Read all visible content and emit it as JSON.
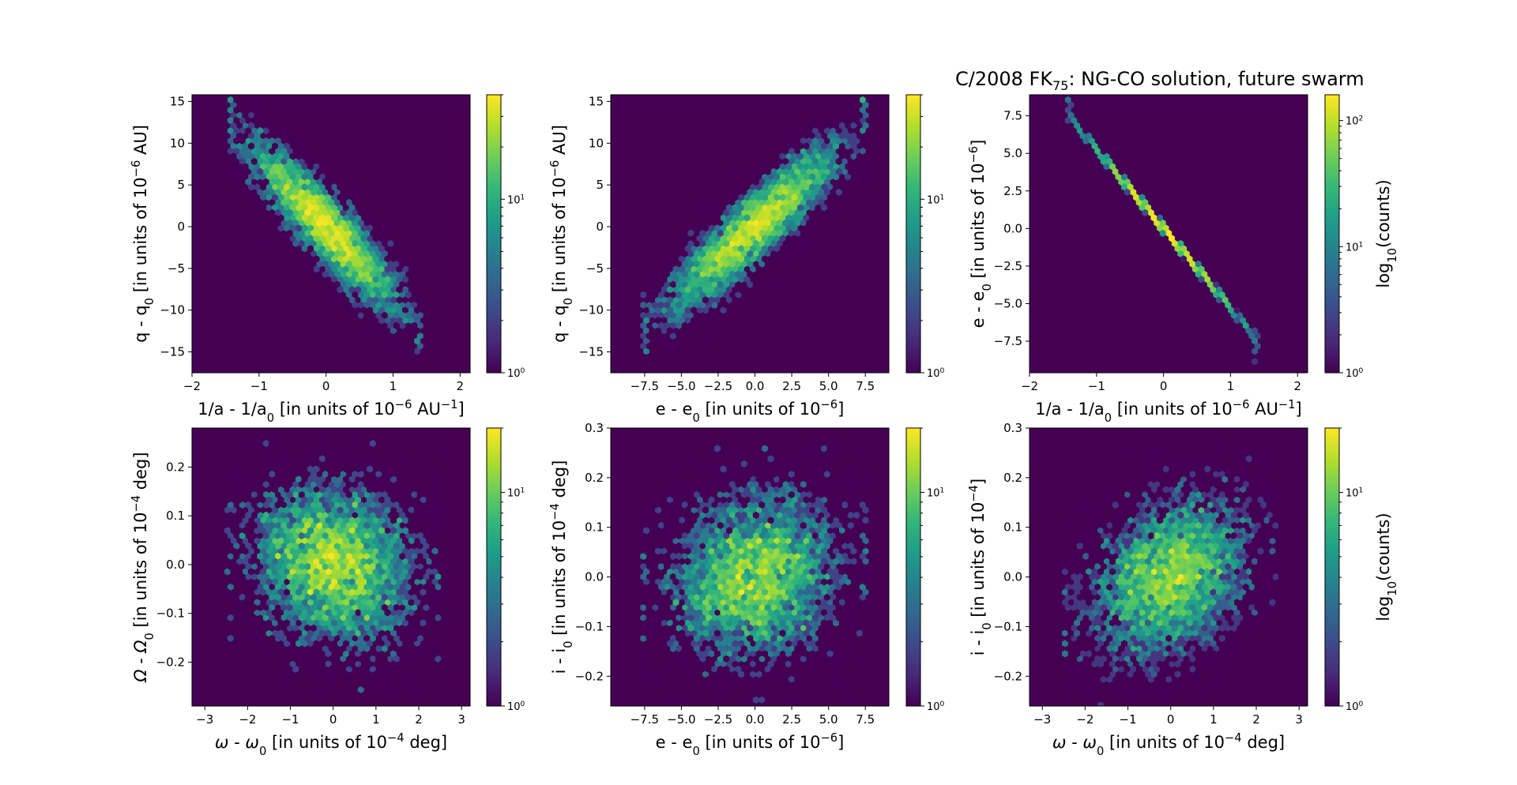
{
  "figure": {
    "suptitle_prefix": "C/2008 FK",
    "suptitle_sub": "75",
    "suptitle_suffix": ": NG-CO solution, future swarm"
  },
  "colors": {
    "background": "#440154",
    "colormap": [
      "#440154",
      "#482878",
      "#3e4989",
      "#31688e",
      "#26828e",
      "#1f9e89",
      "#35b779",
      "#6ece58",
      "#b5de2b",
      "#fde725"
    ]
  },
  "chart_data": [
    {
      "type": "heatmap",
      "subtype": "hexbin",
      "xlabel": "1/a - 1/a₀ [in units of 10⁻⁶ AU⁻¹]",
      "ylabel": "q - q₀ [in units of 10⁻⁶ AU]",
      "xlim": [
        -2.0,
        2.15
      ],
      "ylim": [
        -17.5,
        15.8
      ],
      "xticks": [
        -2,
        -1,
        0,
        1,
        2
      ],
      "xticklabels": [
        "−2",
        "−1",
        "0",
        "1",
        "2"
      ],
      "yticks": [
        -15,
        -10,
        -5,
        0,
        5,
        10,
        15
      ],
      "yticklabels": [
        "−15",
        "−10",
        "−5",
        "0",
        "5",
        "10",
        "15"
      ],
      "distribution": {
        "x_mean": 0.0,
        "x_sd": 0.55,
        "y_mean": 0.0,
        "y_sd": 5.0,
        "corr": -0.9
      },
      "colorbar": {
        "scale": "log",
        "range": [
          1,
          40
        ],
        "ticks": [
          1,
          10
        ],
        "ticklabels": [
          "10⁰",
          "10¹"
        ],
        "label": ""
      }
    },
    {
      "type": "heatmap",
      "subtype": "hexbin",
      "xlabel": "e - e₀ [in units of 10⁻⁶]",
      "ylabel": "q - q₀ [in units of 10⁻⁶ AU]",
      "xlim": [
        -9.8,
        9.1
      ],
      "ylim": [
        -17.5,
        15.8
      ],
      "xticks": [
        -7.5,
        -5.0,
        -2.5,
        0.0,
        2.5,
        5.0,
        7.5
      ],
      "xticklabels": [
        "−7.5",
        "−5.0",
        "−2.5",
        "0.0",
        "2.5",
        "5.0",
        "7.5"
      ],
      "yticks": [
        -15,
        -10,
        -5,
        0,
        5,
        10,
        15
      ],
      "yticklabels": [
        "−15",
        "−10",
        "−5",
        "0",
        "5",
        "10",
        "15"
      ],
      "distribution": {
        "x_mean": 0.0,
        "x_sd": 2.9,
        "y_mean": 0.0,
        "y_sd": 5.0,
        "corr": 0.9
      },
      "colorbar": {
        "scale": "log",
        "range": [
          1,
          40
        ],
        "ticks": [
          1,
          10
        ],
        "ticklabels": [
          "10⁰",
          "10¹"
        ],
        "label": ""
      }
    },
    {
      "type": "heatmap",
      "subtype": "hexbin",
      "xlabel": "1/a - 1/a₀ [in units of 10⁻⁶ AU⁻¹]",
      "ylabel": "e - e₀ [in units of 10⁻⁶]",
      "xlim": [
        -2.0,
        2.15
      ],
      "ylim": [
        -9.6,
        8.9
      ],
      "xticks": [
        -2,
        -1,
        0,
        1,
        2
      ],
      "xticklabels": [
        "−2",
        "−1",
        "0",
        "1",
        "2"
      ],
      "yticks": [
        -7.5,
        -5.0,
        -2.5,
        0.0,
        2.5,
        5.0,
        7.5
      ],
      "yticklabels": [
        "−7.5",
        "−5.0",
        "−2.5",
        "0.0",
        "2.5",
        "5.0",
        "7.5"
      ],
      "distribution": {
        "x_mean": 0.0,
        "x_sd": 0.55,
        "y_mean": 0.0,
        "y_sd": 2.9,
        "corr": -0.9999
      },
      "colorbar": {
        "scale": "log",
        "range": [
          1,
          160
        ],
        "ticks": [
          1,
          10,
          100
        ],
        "ticklabels": [
          "10⁰",
          "10¹",
          "10²"
        ],
        "label": "log₁₀(counts)"
      }
    },
    {
      "type": "heatmap",
      "subtype": "hexbin",
      "xlabel": "ω - ω₀ [in units of 10⁻⁴ deg]",
      "ylabel": "Ω - Ω₀ [in units of 10⁻⁴ deg]",
      "xlim": [
        -3.3,
        3.2
      ],
      "ylim": [
        -0.29,
        0.28
      ],
      "xticks": [
        -3,
        -2,
        -1,
        0,
        1,
        2,
        3
      ],
      "xticklabels": [
        "−3",
        "−2",
        "−1",
        "0",
        "1",
        "2",
        "3"
      ],
      "yticks": [
        -0.2,
        -0.1,
        0.0,
        0.1,
        0.2
      ],
      "yticklabels": [
        "−0.2",
        "−0.1",
        "0.0",
        "0.1",
        "0.2"
      ],
      "distribution": {
        "x_mean": 0.0,
        "x_sd": 0.95,
        "y_mean": 0.0,
        "y_sd": 0.085,
        "corr": -0.15
      },
      "colorbar": {
        "scale": "log",
        "range": [
          1,
          20
        ],
        "ticks": [
          1,
          10
        ],
        "ticklabels": [
          "10⁰",
          "10¹"
        ],
        "label": ""
      }
    },
    {
      "type": "heatmap",
      "subtype": "hexbin",
      "xlabel": "e - e₀ [in units of 10⁻⁶]",
      "ylabel": "i - i₀ [in units of 10⁻⁴ deg]",
      "xlim": [
        -9.8,
        9.1
      ],
      "ylim": [
        -0.26,
        0.3
      ],
      "xticks": [
        -7.5,
        -5.0,
        -2.5,
        0.0,
        2.5,
        5.0,
        7.5
      ],
      "xticklabels": [
        "−7.5",
        "−5.0",
        "−2.5",
        "0.0",
        "2.5",
        "5.0",
        "7.5"
      ],
      "yticks": [
        -0.2,
        -0.1,
        0.0,
        0.1,
        0.2,
        0.3
      ],
      "yticklabels": [
        "−0.2",
        "−0.1",
        "0.0",
        "0.1",
        "0.2",
        "0.3"
      ],
      "distribution": {
        "x_mean": 0.0,
        "x_sd": 2.9,
        "y_mean": 0.0,
        "y_sd": 0.085,
        "corr": 0.15
      },
      "colorbar": {
        "scale": "log",
        "range": [
          1,
          20
        ],
        "ticks": [
          1,
          10
        ],
        "ticklabels": [
          "10⁰",
          "10¹"
        ],
        "label": ""
      }
    },
    {
      "type": "heatmap",
      "subtype": "hexbin",
      "xlabel": "ω - ω₀ [in units of 10⁻⁴ deg]",
      "ylabel": "i - i₀ [in units of 10⁻⁴]",
      "xlim": [
        -3.3,
        3.2
      ],
      "ylim": [
        -0.26,
        0.3
      ],
      "xticks": [
        -3,
        -2,
        -1,
        0,
        1,
        2,
        3
      ],
      "xticklabels": [
        "−3",
        "−2",
        "−1",
        "0",
        "1",
        "2",
        "3"
      ],
      "yticks": [
        -0.2,
        -0.1,
        0.0,
        0.1,
        0.2,
        0.3
      ],
      "yticklabels": [
        "−0.2",
        "−0.1",
        "0.0",
        "0.1",
        "0.2",
        "0.3"
      ],
      "distribution": {
        "x_mean": 0.0,
        "x_sd": 0.95,
        "y_mean": 0.0,
        "y_sd": 0.085,
        "corr": 0.3
      },
      "colorbar": {
        "scale": "log",
        "range": [
          1,
          20
        ],
        "ticks": [
          1,
          10
        ],
        "ticklabels": [
          "10⁰",
          "10¹"
        ],
        "label": "log₁₀(counts)"
      }
    }
  ]
}
